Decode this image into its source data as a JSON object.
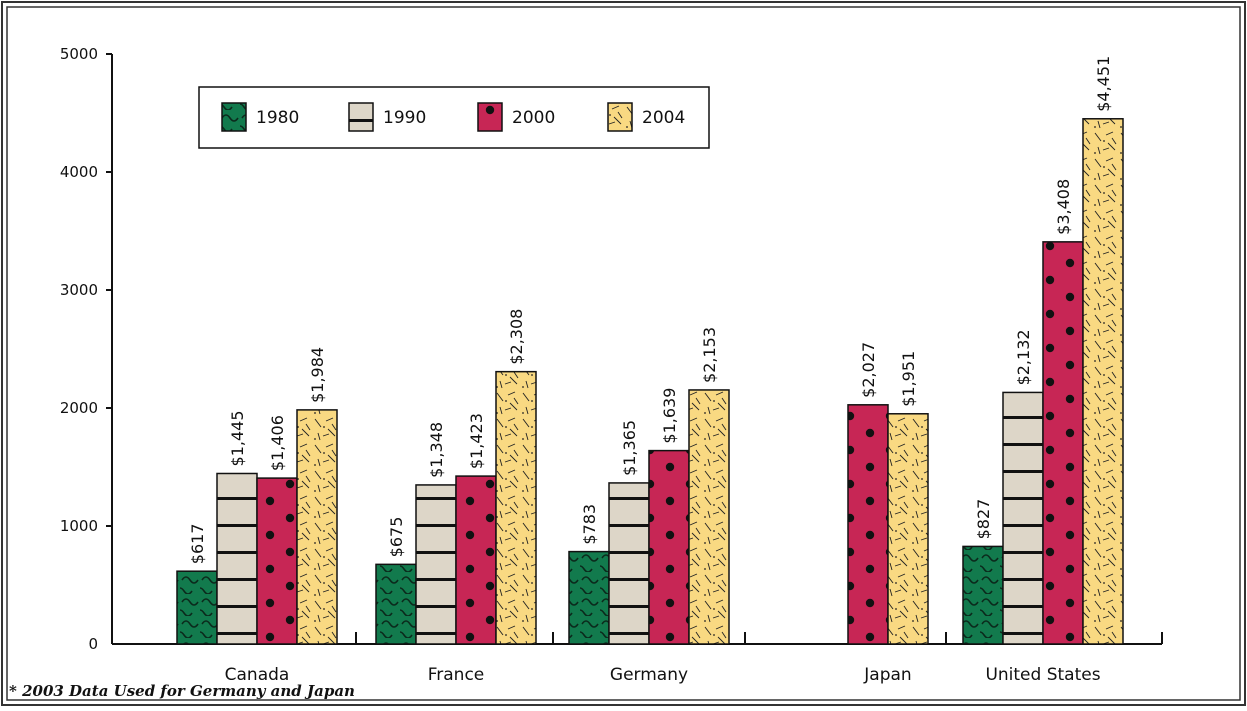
{
  "chart_data": {
    "type": "bar",
    "categories": [
      "Canada",
      "France",
      "Germany",
      "Japan",
      "United States"
    ],
    "series": [
      {
        "name": "1980",
        "values": [
          617,
          675,
          783,
          null,
          827
        ],
        "labels": [
          "$617",
          "$675",
          "$783",
          "",
          "$827"
        ]
      },
      {
        "name": "1990",
        "values": [
          1445,
          1348,
          1365,
          null,
          2132
        ],
        "labels": [
          "$1,445",
          "$1,348",
          "$1,365",
          "",
          "$2,132"
        ]
      },
      {
        "name": "2000",
        "values": [
          1406,
          1423,
          1639,
          2027,
          3408
        ],
        "labels": [
          "$1,406",
          "$1,423",
          "$1,639",
          "$2,027",
          "$3,408"
        ]
      },
      {
        "name": "2004",
        "values": [
          1984,
          2308,
          2153,
          1951,
          4451
        ],
        "labels": [
          "$1,984",
          "$2,308",
          "$2,153",
          "$1,951",
          "$4,451"
        ]
      }
    ],
    "ylim": [
      0,
      5000
    ],
    "yticks": [
      0,
      1000,
      2000,
      3000,
      4000,
      5000
    ],
    "ytick_labels": [
      "0",
      "1000",
      "2000",
      "3000",
      "4000",
      "5000"
    ],
    "legend_position": "top-left",
    "grid": false,
    "colors": {
      "1980": "#127a4d",
      "1990": "#ddd6c8",
      "2000": "#c72655",
      "2004": "#f9d982"
    },
    "patterns": {
      "1980": "wave",
      "1990": "horizontal-lines",
      "2000": "dots",
      "2004": "hatch"
    }
  },
  "footnote": "* 2003 Data Used for Germany and Japan"
}
